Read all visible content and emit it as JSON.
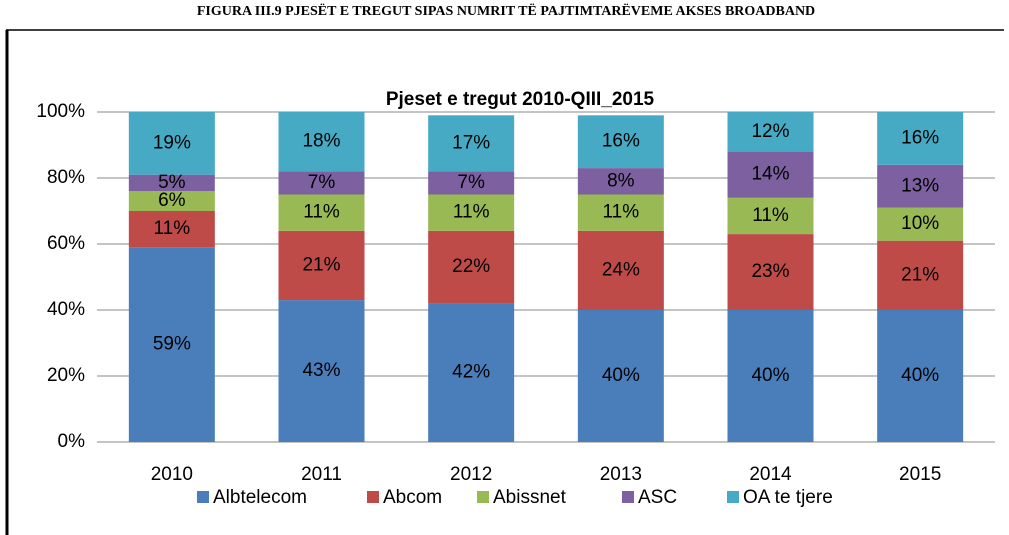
{
  "caption": "FIGURA III.9 PJESËT E TREGUT SIPAS NUMRIT TË PAJTIMTARËVEME AKSES BROADBAND",
  "chart_data": {
    "type": "stacked_bar",
    "title": "Pjeset e tregut 2010-QIII_2015",
    "categories": [
      "2010",
      "2011",
      "2012",
      "2013",
      "2014",
      "2015"
    ],
    "series": [
      {
        "name": "Albtelecom",
        "color": "#4a7ebb",
        "values": [
          59,
          43,
          42,
          40,
          40,
          40
        ],
        "value_labels": [
          "59%",
          "43%",
          "42%",
          "40%",
          "40%",
          "40%"
        ]
      },
      {
        "name": "Abcom",
        "color": "#be4b48",
        "values": [
          11,
          21,
          22,
          24,
          23,
          21
        ],
        "value_labels": [
          "11%",
          "21%",
          "22%",
          "24%",
          "23%",
          "21%"
        ]
      },
      {
        "name": "Abissnet",
        "color": "#98b954",
        "values": [
          6,
          11,
          11,
          11,
          11,
          10
        ],
        "value_labels": [
          "6%",
          "11%",
          "11%",
          "11%",
          "11%",
          "10%"
        ]
      },
      {
        "name": "ASC",
        "color": "#7d60a0",
        "values": [
          5,
          7,
          7,
          8,
          14,
          13
        ],
        "value_labels": [
          "5%",
          "7%",
          "7%",
          "8%",
          "14%",
          "13%"
        ]
      },
      {
        "name": "OA te tjere",
        "color": "#46aac5",
        "values": [
          19,
          18,
          17,
          16,
          12,
          16
        ],
        "value_labels": [
          "19%",
          "18%",
          "17%",
          "16%",
          "12%",
          "16%"
        ]
      }
    ],
    "ylim": [
      0,
      100
    ],
    "yticks": [
      {
        "value": 0,
        "label": "0%"
      },
      {
        "value": 20,
        "label": "20%"
      },
      {
        "value": 40,
        "label": "40%"
      },
      {
        "value": 60,
        "label": "60%"
      },
      {
        "value": 80,
        "label": "80%"
      },
      {
        "value": 100,
        "label": "100%"
      }
    ],
    "grid": true,
    "legend": "bottom"
  }
}
